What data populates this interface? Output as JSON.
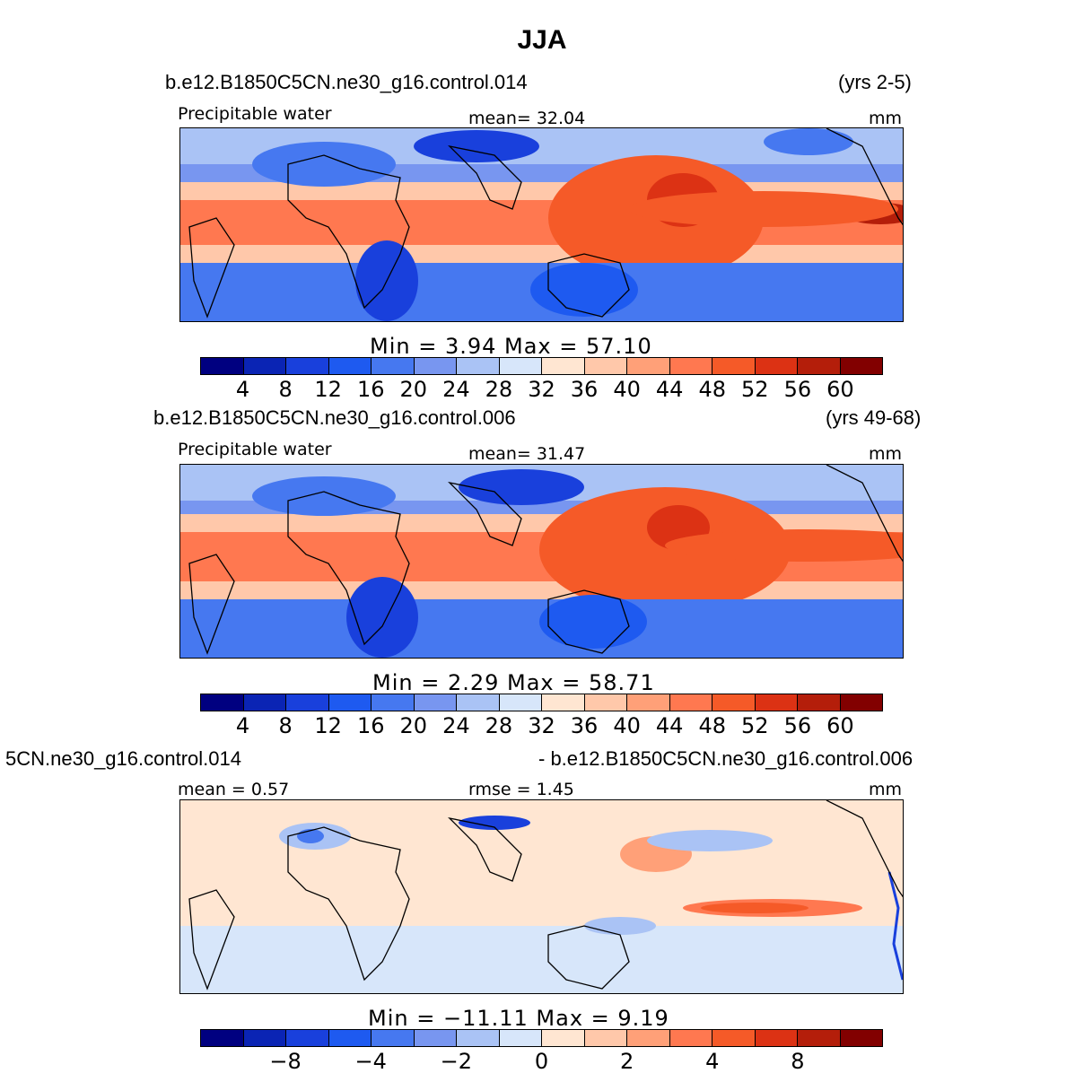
{
  "title": "JJA",
  "panels": [
    {
      "case": "b.e12.B1850C5CN.ne30_g16.control.014",
      "years": "(yrs 2-5)",
      "variable": "Precipitable water",
      "stat1": "mean=   32.04",
      "stat2": "",
      "units": "mm",
      "minmax": "Min  =     3.94  Max  =    57.10",
      "ticks": [
        "4",
        "8",
        "12",
        "16",
        "20",
        "24",
        "28",
        "32",
        "36",
        "40",
        "44",
        "48",
        "52",
        "56",
        "60"
      ]
    },
    {
      "case": "b.e12.B1850C5CN.ne30_g16.control.006",
      "years": "(yrs 49-68)",
      "variable": "Precipitable water",
      "stat1": "mean=   31.47",
      "stat2": "",
      "units": "mm",
      "minmax": "Min  =     2.29  Max  =    58.71",
      "ticks": [
        "4",
        "8",
        "12",
        "16",
        "20",
        "24",
        "28",
        "32",
        "36",
        "40",
        "44",
        "48",
        "52",
        "56",
        "60"
      ]
    },
    {
      "case": "5CN.ne30_g16.control.014",
      "years": "- b.e12.B1850C5CN.ne30_g16.control.006",
      "variable": "mean  =     0.57",
      "stat1": "rmse  =     1.45",
      "stat2": "",
      "units": "mm",
      "minmax": "Min  =  −11.11  Max  =     9.19",
      "ticks": [
        "−8",
        "−4",
        "−2",
        "0",
        "2",
        "4",
        "8"
      ]
    }
  ],
  "colors": {
    "scale": [
      "#000080",
      "#0a24b4",
      "#1940dc",
      "#1e5af0",
      "#4678f0",
      "#7896f0",
      "#aac3f5",
      "#d7e6fa",
      "#ffe6d2",
      "#ffc8aa",
      "#ffa078",
      "#ff7850",
      "#f55a28",
      "#dc3214",
      "#b41e0a",
      "#820000"
    ],
    "ocean_warm": "#f0643c",
    "ocean_cool": "#3c6ee6",
    "coast": "#000000"
  }
}
